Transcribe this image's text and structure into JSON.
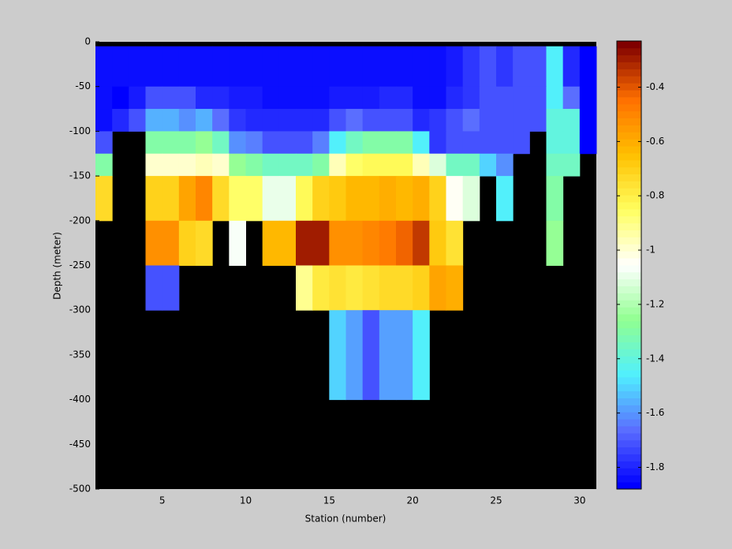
{
  "chart_data": {
    "type": "heatmap",
    "x_label": "Station (number)",
    "y_label": "Depth (meter)",
    "x_edges": [
      1,
      2,
      3,
      4,
      5,
      6,
      7,
      8,
      9,
      10,
      11,
      12,
      13,
      14,
      15,
      16,
      17,
      18,
      19,
      20,
      21,
      22,
      23,
      24,
      25,
      26,
      27,
      28,
      29,
      30,
      31
    ],
    "y_edges": [
      -5,
      -50,
      -75,
      -100,
      -125,
      -150,
      -200,
      -250,
      -300,
      -400
    ],
    "z": [
      [
        -1.85,
        -1.85,
        -1.85,
        -1.85,
        -1.85,
        -1.85,
        -1.85,
        -1.85,
        -1.85,
        -1.85,
        -1.85,
        -1.85,
        -1.85,
        -1.85,
        -1.85,
        -1.85,
        -1.85,
        -1.85,
        -1.85,
        -1.85,
        -1.85,
        -1.82,
        -1.75,
        -1.72,
        -1.75,
        -1.7,
        -1.72,
        -1.45,
        -1.78,
        -1.87
      ],
      [
        -1.84,
        -1.87,
        -1.82,
        -1.72,
        -1.72,
        -1.7,
        -1.78,
        -1.8,
        -1.82,
        -1.82,
        -1.85,
        -1.85,
        -1.85,
        -1.85,
        -1.82,
        -1.82,
        -1.82,
        -1.8,
        -1.78,
        -1.85,
        -1.85,
        -1.78,
        -1.75,
        -1.72,
        -1.72,
        -1.72,
        -1.72,
        -1.45,
        -1.65,
        -1.87
      ],
      [
        -1.84,
        -1.78,
        -1.7,
        -1.55,
        -1.55,
        -1.6,
        -1.55,
        -1.65,
        -1.75,
        -1.78,
        -1.8,
        -1.8,
        -1.8,
        -1.78,
        -1.72,
        -1.65,
        -1.72,
        -1.7,
        -1.7,
        -1.78,
        -1.75,
        -1.72,
        -1.65,
        -1.7,
        -1.7,
        -1.72,
        -1.72,
        -1.4,
        -1.4,
        -1.87
      ],
      [
        -1.7,
        null,
        null,
        -1.3,
        -1.3,
        -1.3,
        -1.25,
        -1.35,
        -1.6,
        -1.62,
        -1.7,
        -1.7,
        -1.7,
        -1.62,
        -1.45,
        -1.35,
        -1.3,
        -1.3,
        -1.3,
        -1.45,
        -1.75,
        -1.72,
        -1.72,
        -1.72,
        -1.7,
        -1.72,
        null,
        -1.4,
        -1.4,
        -1.87
      ],
      [
        -1.3,
        null,
        null,
        -0.98,
        -0.98,
        -0.98,
        -0.95,
        -0.98,
        -1.25,
        -1.3,
        -1.35,
        -1.35,
        -1.35,
        -1.3,
        -0.95,
        -0.85,
        -0.82,
        -0.82,
        -0.82,
        -0.95,
        -1.1,
        -1.35,
        -1.35,
        -1.5,
        -1.6,
        null,
        null,
        -1.35,
        -1.35,
        null
      ],
      [
        -0.72,
        null,
        null,
        -0.68,
        -0.68,
        -0.55,
        -0.48,
        -0.72,
        -0.85,
        -0.85,
        -1.08,
        -1.08,
        -0.82,
        -0.7,
        -0.65,
        -0.62,
        -0.6,
        -0.58,
        -0.62,
        -0.58,
        -0.7,
        -1.02,
        -1.1,
        null,
        -1.45,
        null,
        null,
        -1.28,
        null,
        null
      ],
      [
        null,
        null,
        null,
        -0.5,
        -0.5,
        -0.68,
        -0.72,
        null,
        -1.05,
        null,
        -0.62,
        -0.62,
        -0.28,
        -0.28,
        -0.5,
        -0.5,
        -0.47,
        -0.44,
        -0.4,
        -0.32,
        -0.65,
        -0.75,
        null,
        null,
        null,
        null,
        null,
        -1.25,
        null,
        null
      ],
      [
        null,
        null,
        null,
        -1.7,
        -1.7,
        null,
        null,
        null,
        null,
        null,
        null,
        null,
        -0.9,
        -0.78,
        -0.75,
        -0.78,
        -0.75,
        -0.72,
        -0.72,
        -0.7,
        -0.55,
        -0.58,
        null,
        null,
        null,
        null,
        null,
        null,
        null,
        null
      ],
      [
        null,
        null,
        null,
        null,
        null,
        null,
        null,
        null,
        null,
        null,
        null,
        null,
        null,
        null,
        -1.5,
        -1.58,
        -1.7,
        -1.58,
        -1.58,
        -1.45,
        null,
        null,
        null,
        null,
        null,
        null,
        null,
        null,
        null,
        null
      ]
    ],
    "xlim": [
      1,
      31
    ],
    "ylim": [
      -500,
      0
    ],
    "xticks": [
      5,
      10,
      15,
      20,
      25,
      30
    ],
    "yticks": [
      0,
      -50,
      -100,
      -150,
      -200,
      -250,
      -300,
      -350,
      -400,
      -450,
      -500
    ],
    "clim": [
      -1.88,
      -0.23
    ],
    "cticks": [
      -1.8,
      -1.6,
      -1.4,
      -1.2,
      -1,
      -0.8,
      -0.6,
      -0.4
    ],
    "colormap": [
      "#0000ff",
      "#5a6cff",
      "#50f0ff",
      "#90ff90",
      "#ffffff",
      "#ffff60",
      "#ffc000",
      "#ff7000",
      "#800000"
    ],
    "colormap_levels": 64,
    "background": "#000000"
  }
}
